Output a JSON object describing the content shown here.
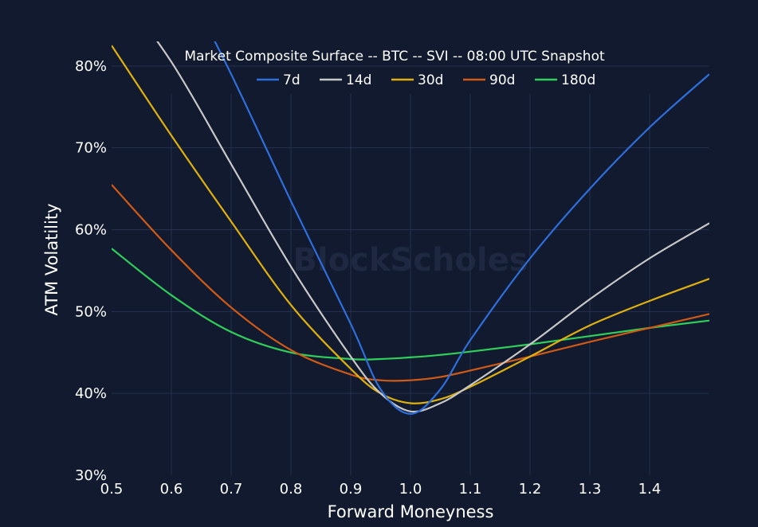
{
  "chart_data": {
    "type": "line",
    "title": "Market Composite Surface -- BTC -- SVI -- 08:00 UTC Snapshot",
    "xlabel": "Forward Moneyness",
    "ylabel": "ATM Volatility",
    "watermark": "BlockScholes",
    "xlim": [
      0.5,
      1.5
    ],
    "ylim": [
      30,
      83
    ],
    "x_ticks": [
      0.5,
      0.6,
      0.7,
      0.8,
      0.9,
      1.0,
      1.1,
      1.2,
      1.3,
      1.4
    ],
    "x_tick_labels": [
      "0.5",
      "0.6",
      "0.7",
      "0.8",
      "0.9",
      "1.0",
      "1.1",
      "1.2",
      "1.3",
      "1.4"
    ],
    "y_ticks": [
      30,
      40,
      50,
      60,
      70,
      80
    ],
    "y_tick_labels": [
      "30%",
      "40%",
      "50%",
      "60%",
      "70%",
      "80%"
    ],
    "grid": true,
    "legend_position": "top-center",
    "series": [
      {
        "name": "7d",
        "color": "#2f6fdc",
        "x": [
          0.62,
          0.7,
          0.8,
          0.9,
          0.95,
          1.0,
          1.05,
          1.1,
          1.2,
          1.3,
          1.4,
          1.5
        ],
        "y": [
          90.5,
          79.0,
          63.5,
          48.5,
          40.5,
          37.5,
          40.5,
          46.5,
          56.5,
          65.0,
          72.5,
          79.0
        ]
      },
      {
        "name": "14d",
        "color": "#c8c8c8",
        "x": [
          0.5,
          0.6,
          0.7,
          0.8,
          0.9,
          0.95,
          1.0,
          1.05,
          1.1,
          1.2,
          1.3,
          1.4,
          1.5
        ],
        "y": [
          90.5,
          80.5,
          68.0,
          55.5,
          44.5,
          40.0,
          37.8,
          38.8,
          41.0,
          46.0,
          51.5,
          56.5,
          60.8
        ]
      },
      {
        "name": "30d",
        "color": "#e0b10e",
        "x": [
          0.5,
          0.6,
          0.7,
          0.8,
          0.9,
          0.95,
          1.0,
          1.05,
          1.1,
          1.2,
          1.3,
          1.4,
          1.5
        ],
        "y": [
          82.5,
          71.5,
          61.0,
          50.8,
          43.0,
          40.0,
          38.8,
          39.3,
          40.8,
          44.5,
          48.3,
          51.3,
          54.0
        ]
      },
      {
        "name": "90d",
        "color": "#d15a16",
        "x": [
          0.5,
          0.6,
          0.7,
          0.8,
          0.9,
          0.95,
          1.0,
          1.05,
          1.1,
          1.2,
          1.3,
          1.4,
          1.5
        ],
        "y": [
          65.5,
          57.5,
          50.5,
          45.3,
          42.3,
          41.6,
          41.6,
          42.0,
          42.8,
          44.5,
          46.3,
          48.0,
          49.7
        ]
      },
      {
        "name": "180d",
        "color": "#2fd05a",
        "x": [
          0.5,
          0.6,
          0.7,
          0.8,
          0.9,
          0.95,
          1.0,
          1.05,
          1.1,
          1.2,
          1.3,
          1.4,
          1.5
        ],
        "y": [
          57.7,
          52.0,
          47.5,
          45.0,
          44.2,
          44.2,
          44.4,
          44.7,
          45.1,
          46.0,
          47.0,
          48.0,
          48.9
        ]
      }
    ]
  }
}
